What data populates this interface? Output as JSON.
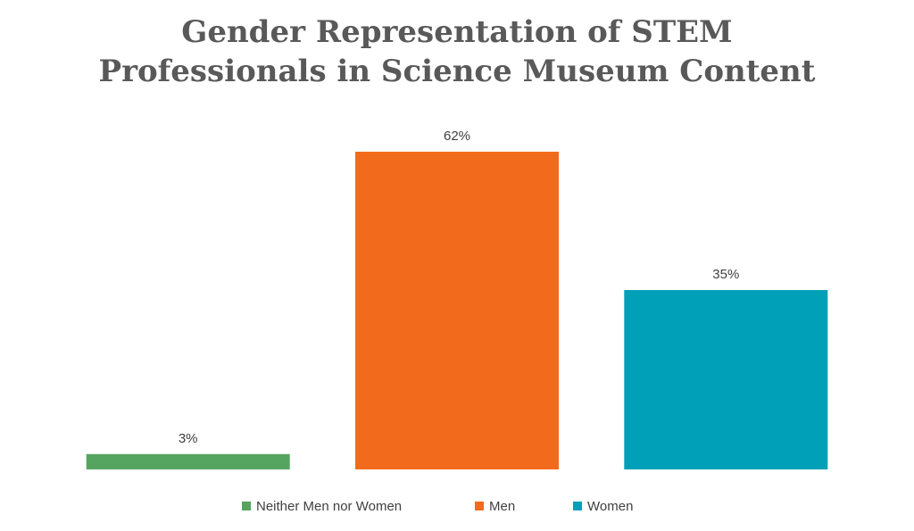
{
  "chart_data": {
    "type": "bar",
    "title": [
      "Gender Representation of STEM",
      "Professionals in Science Museum Content"
    ],
    "categories": [
      "Neither Men nor Women",
      "Men",
      "Women"
    ],
    "values": [
      3,
      62,
      35
    ],
    "value_labels": [
      "3%",
      "62%",
      "35%"
    ],
    "colors": [
      "#55a560",
      "#f26b1d",
      "#00a0b8"
    ],
    "ylim": [
      0,
      62
    ],
    "grid": false,
    "legend": "bottom"
  },
  "legend": {
    "items": [
      {
        "label": "Neither Men nor Women",
        "color": "#55a560"
      },
      {
        "label": "Men",
        "color": "#f26b1d"
      },
      {
        "label": "Women",
        "color": "#00a0b8"
      }
    ]
  }
}
